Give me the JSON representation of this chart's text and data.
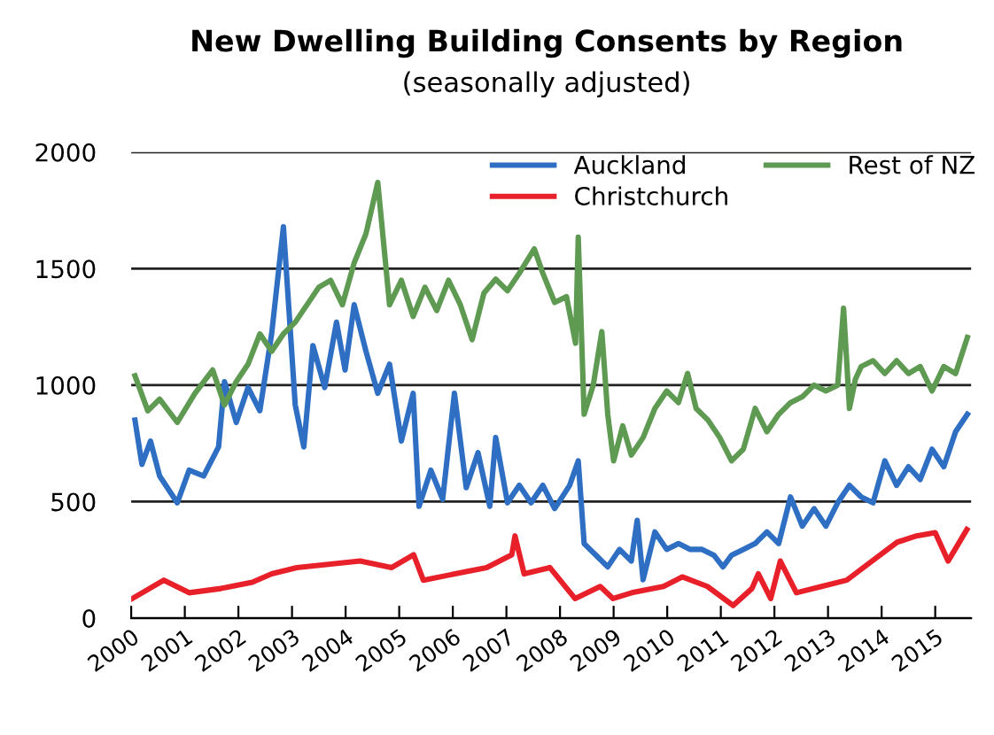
{
  "chart_data": {
    "type": "line",
    "title": "New Dwelling Building Consents by Region",
    "subtitle": "(seasonally adjusted)",
    "xlim": [
      2000,
      2015.67
    ],
    "xticks": [
      2000,
      2001,
      2002,
      2003,
      2004,
      2005,
      2006,
      2007,
      2008,
      2009,
      2010,
      2011,
      2012,
      2013,
      2014,
      2015
    ],
    "ylim": [
      0,
      2000
    ],
    "yticks": [
      0,
      500,
      1000,
      1500,
      2000
    ],
    "grid": "y",
    "legend": "top right",
    "series": [
      {
        "name": "Auckland",
        "color": "#2e6fc4",
        "x": [
          2000.07,
          2000.2,
          2000.36,
          2000.53,
          2000.86,
          2001.08,
          2001.35,
          2001.63,
          2001.74,
          2001.96,
          2002.18,
          2002.4,
          2002.62,
          2002.84,
          2003.06,
          2003.22,
          2003.39,
          2003.61,
          2003.83,
          2003.99,
          2004.16,
          2004.38,
          2004.6,
          2004.82,
          2005.04,
          2005.26,
          2005.37,
          2005.59,
          2005.81,
          2006.03,
          2006.25,
          2006.47,
          2006.69,
          2006.8,
          2007.02,
          2007.24,
          2007.46,
          2007.68,
          2007.9,
          2008.18,
          2008.34,
          2008.45,
          2008.67,
          2008.89,
          2009.11,
          2009.33,
          2009.44,
          2009.55,
          2009.77,
          2009.99,
          2010.21,
          2010.43,
          2010.65,
          2010.87,
          2011.04,
          2011.2,
          2011.42,
          2011.64,
          2011.86,
          2012.08,
          2012.3,
          2012.52,
          2012.74,
          2012.96,
          2013.18,
          2013.4,
          2013.62,
          2013.84,
          2014.06,
          2014.28,
          2014.5,
          2014.72,
          2014.94,
          2015.16,
          2015.38,
          2015.6
        ],
        "values": [
          850,
          660,
          760,
          610,
          495,
          635,
          610,
          735,
          1015,
          840,
          990,
          890,
          1220,
          1680,
          915,
          735,
          1170,
          990,
          1270,
          1065,
          1345,
          1145,
          965,
          1090,
          760,
          965,
          480,
          635,
          510,
          965,
          560,
          710,
          480,
          775,
          495,
          570,
          495,
          570,
          470,
          570,
          675,
          320,
          270,
          220,
          295,
          245,
          420,
          165,
          370,
          295,
          320,
          295,
          295,
          270,
          220,
          270,
          295,
          320,
          370,
          320,
          520,
          395,
          470,
          395,
          495,
          570,
          520,
          495,
          675,
          570,
          650,
          595,
          725,
          650,
          800,
          875
        ]
      },
      {
        "name": "Christchurch",
        "color": "#e8202a",
        "x": [
          2000.02,
          2000.61,
          2001.08,
          2001.67,
          2002.26,
          2002.62,
          2003.09,
          2003.68,
          2004.27,
          2004.86,
          2005.27,
          2005.45,
          2006.04,
          2006.63,
          2007.1,
          2007.16,
          2007.33,
          2007.81,
          2008.28,
          2008.75,
          2008.99,
          2009.34,
          2009.93,
          2010.28,
          2010.75,
          2011.23,
          2011.58,
          2011.7,
          2011.93,
          2012.11,
          2012.41,
          2012.88,
          2013.35,
          2013.82,
          2014.29,
          2014.65,
          2015.0,
          2015.24,
          2015.59
        ],
        "values": [
          84,
          163,
          109,
          127,
          154,
          190,
          217,
          231,
          245,
          217,
          272,
          163,
          190,
          217,
          272,
          353,
          190,
          217,
          84,
          136,
          84,
          109,
          136,
          177,
          136,
          54,
          127,
          190,
          84,
          245,
          109,
          136,
          163,
          245,
          326,
          353,
          367,
          245,
          380
        ]
      },
      {
        "name": "Rest of NZ",
        "color": "#5f9a52",
        "x": [
          2000.07,
          2000.31,
          2000.53,
          2000.86,
          2001.19,
          2001.52,
          2001.74,
          2001.96,
          2002.18,
          2002.4,
          2002.62,
          2002.84,
          2003.06,
          2003.28,
          2003.5,
          2003.72,
          2003.94,
          2004.16,
          2004.38,
          2004.6,
          2004.82,
          2005.04,
          2005.26,
          2005.48,
          2005.7,
          2005.92,
          2006.14,
          2006.36,
          2006.58,
          2006.8,
          2007.02,
          2007.24,
          2007.52,
          2007.68,
          2007.9,
          2008.12,
          2008.29,
          2008.34,
          2008.45,
          2008.62,
          2008.78,
          2008.89,
          2009.0,
          2009.17,
          2009.33,
          2009.55,
          2009.77,
          2009.99,
          2010.21,
          2010.38,
          2010.54,
          2010.76,
          2010.98,
          2011.2,
          2011.42,
          2011.64,
          2011.86,
          2012.08,
          2012.3,
          2012.52,
          2012.74,
          2012.96,
          2013.18,
          2013.29,
          2013.4,
          2013.51,
          2013.62,
          2013.84,
          2014.06,
          2014.28,
          2014.5,
          2014.72,
          2014.94,
          2015.16,
          2015.38,
          2015.6
        ],
        "values": [
          1040,
          890,
          940,
          840,
          965,
          1065,
          915,
          1015,
          1090,
          1220,
          1145,
          1220,
          1270,
          1345,
          1420,
          1450,
          1345,
          1525,
          1650,
          1870,
          1345,
          1450,
          1295,
          1420,
          1320,
          1450,
          1345,
          1195,
          1395,
          1455,
          1405,
          1480,
          1585,
          1480,
          1355,
          1380,
          1180,
          1635,
          875,
          1000,
          1230,
          875,
          675,
          825,
          700,
          775,
          900,
          975,
          925,
          1050,
          900,
          850,
          775,
          675,
          725,
          900,
          800,
          875,
          925,
          950,
          1000,
          975,
          1000,
          1330,
          900,
          1025,
          1080,
          1105,
          1050,
          1105,
          1050,
          1080,
          975,
          1080,
          1050,
          1205
        ]
      }
    ]
  }
}
